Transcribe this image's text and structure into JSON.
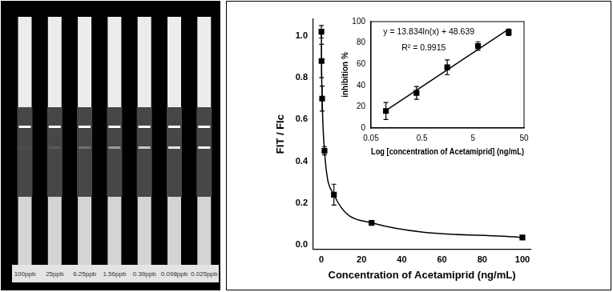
{
  "strips": {
    "labels": [
      "100ppb",
      "25ppb",
      "6.25ppb",
      "1.56ppb",
      "0.39ppb",
      "0.098ppb",
      "0.025ppb"
    ]
  },
  "chart_data": [
    {
      "type": "line",
      "x_label": "Concentration of Acetamiprid (ng/mL)",
      "y_label": "FIT / FIc",
      "series": [
        {
          "type": "line",
          "marker": "square",
          "line_style": "solid",
          "color": "#000000",
          "x": [
            0.025,
            0.098,
            0.39,
            1.56,
            6.25,
            25,
            100
          ],
          "values": [
            1.02,
            0.88,
            0.7,
            0.45,
            0.24,
            0.105,
            0.035
          ],
          "errors": [
            0.03,
            0.08,
            0.06,
            0.02,
            0.05,
            0.005,
            0.004
          ]
        }
      ],
      "xlim": [
        -4,
        104
      ],
      "xticks": [
        0,
        20,
        40,
        60,
        80,
        100
      ],
      "ylim": [
        -0.02,
        1.08
      ],
      "yticks": [
        {
          "value": 0,
          "label": "0.0"
        },
        {
          "value": 0.2,
          "label": "0.2"
        },
        {
          "value": 0.4,
          "label": "0.4"
        },
        {
          "value": 0.6,
          "label": "0.6"
        },
        {
          "value": 0.8,
          "label": "0.8"
        },
        {
          "value": 1,
          "label": "1.0"
        }
      ],
      "grid": false
    },
    {
      "type": "scatter",
      "x_label": "Log [concentration of Acetamiprid] (ng/mL)",
      "y_label": "inhibition %",
      "log": "x",
      "annotations": [
        "y = 13.834ln(x) + 48.639",
        "R² = 0.9915"
      ],
      "series": [
        {
          "type": "scatter",
          "marker": "square",
          "color": "#000000",
          "x": [
            0.098,
            0.39,
            1.56,
            6.25,
            25
          ],
          "values": [
            16,
            33,
            57,
            77,
            90
          ],
          "errors": [
            8,
            6,
            7,
            4,
            3
          ]
        },
        {
          "type": "line",
          "line_style": "solid",
          "color": "#000000",
          "x": [
            0.098,
            25
          ],
          "values": [
            16.5,
            93
          ]
        }
      ],
      "xlim": [
        0.05,
        50
      ],
      "xticks": [
        0.05,
        0.5,
        5,
        50
      ],
      "ylim": [
        0,
        100
      ],
      "yticks": [
        0,
        20,
        40,
        60,
        80,
        100
      ],
      "grid": false
    }
  ]
}
